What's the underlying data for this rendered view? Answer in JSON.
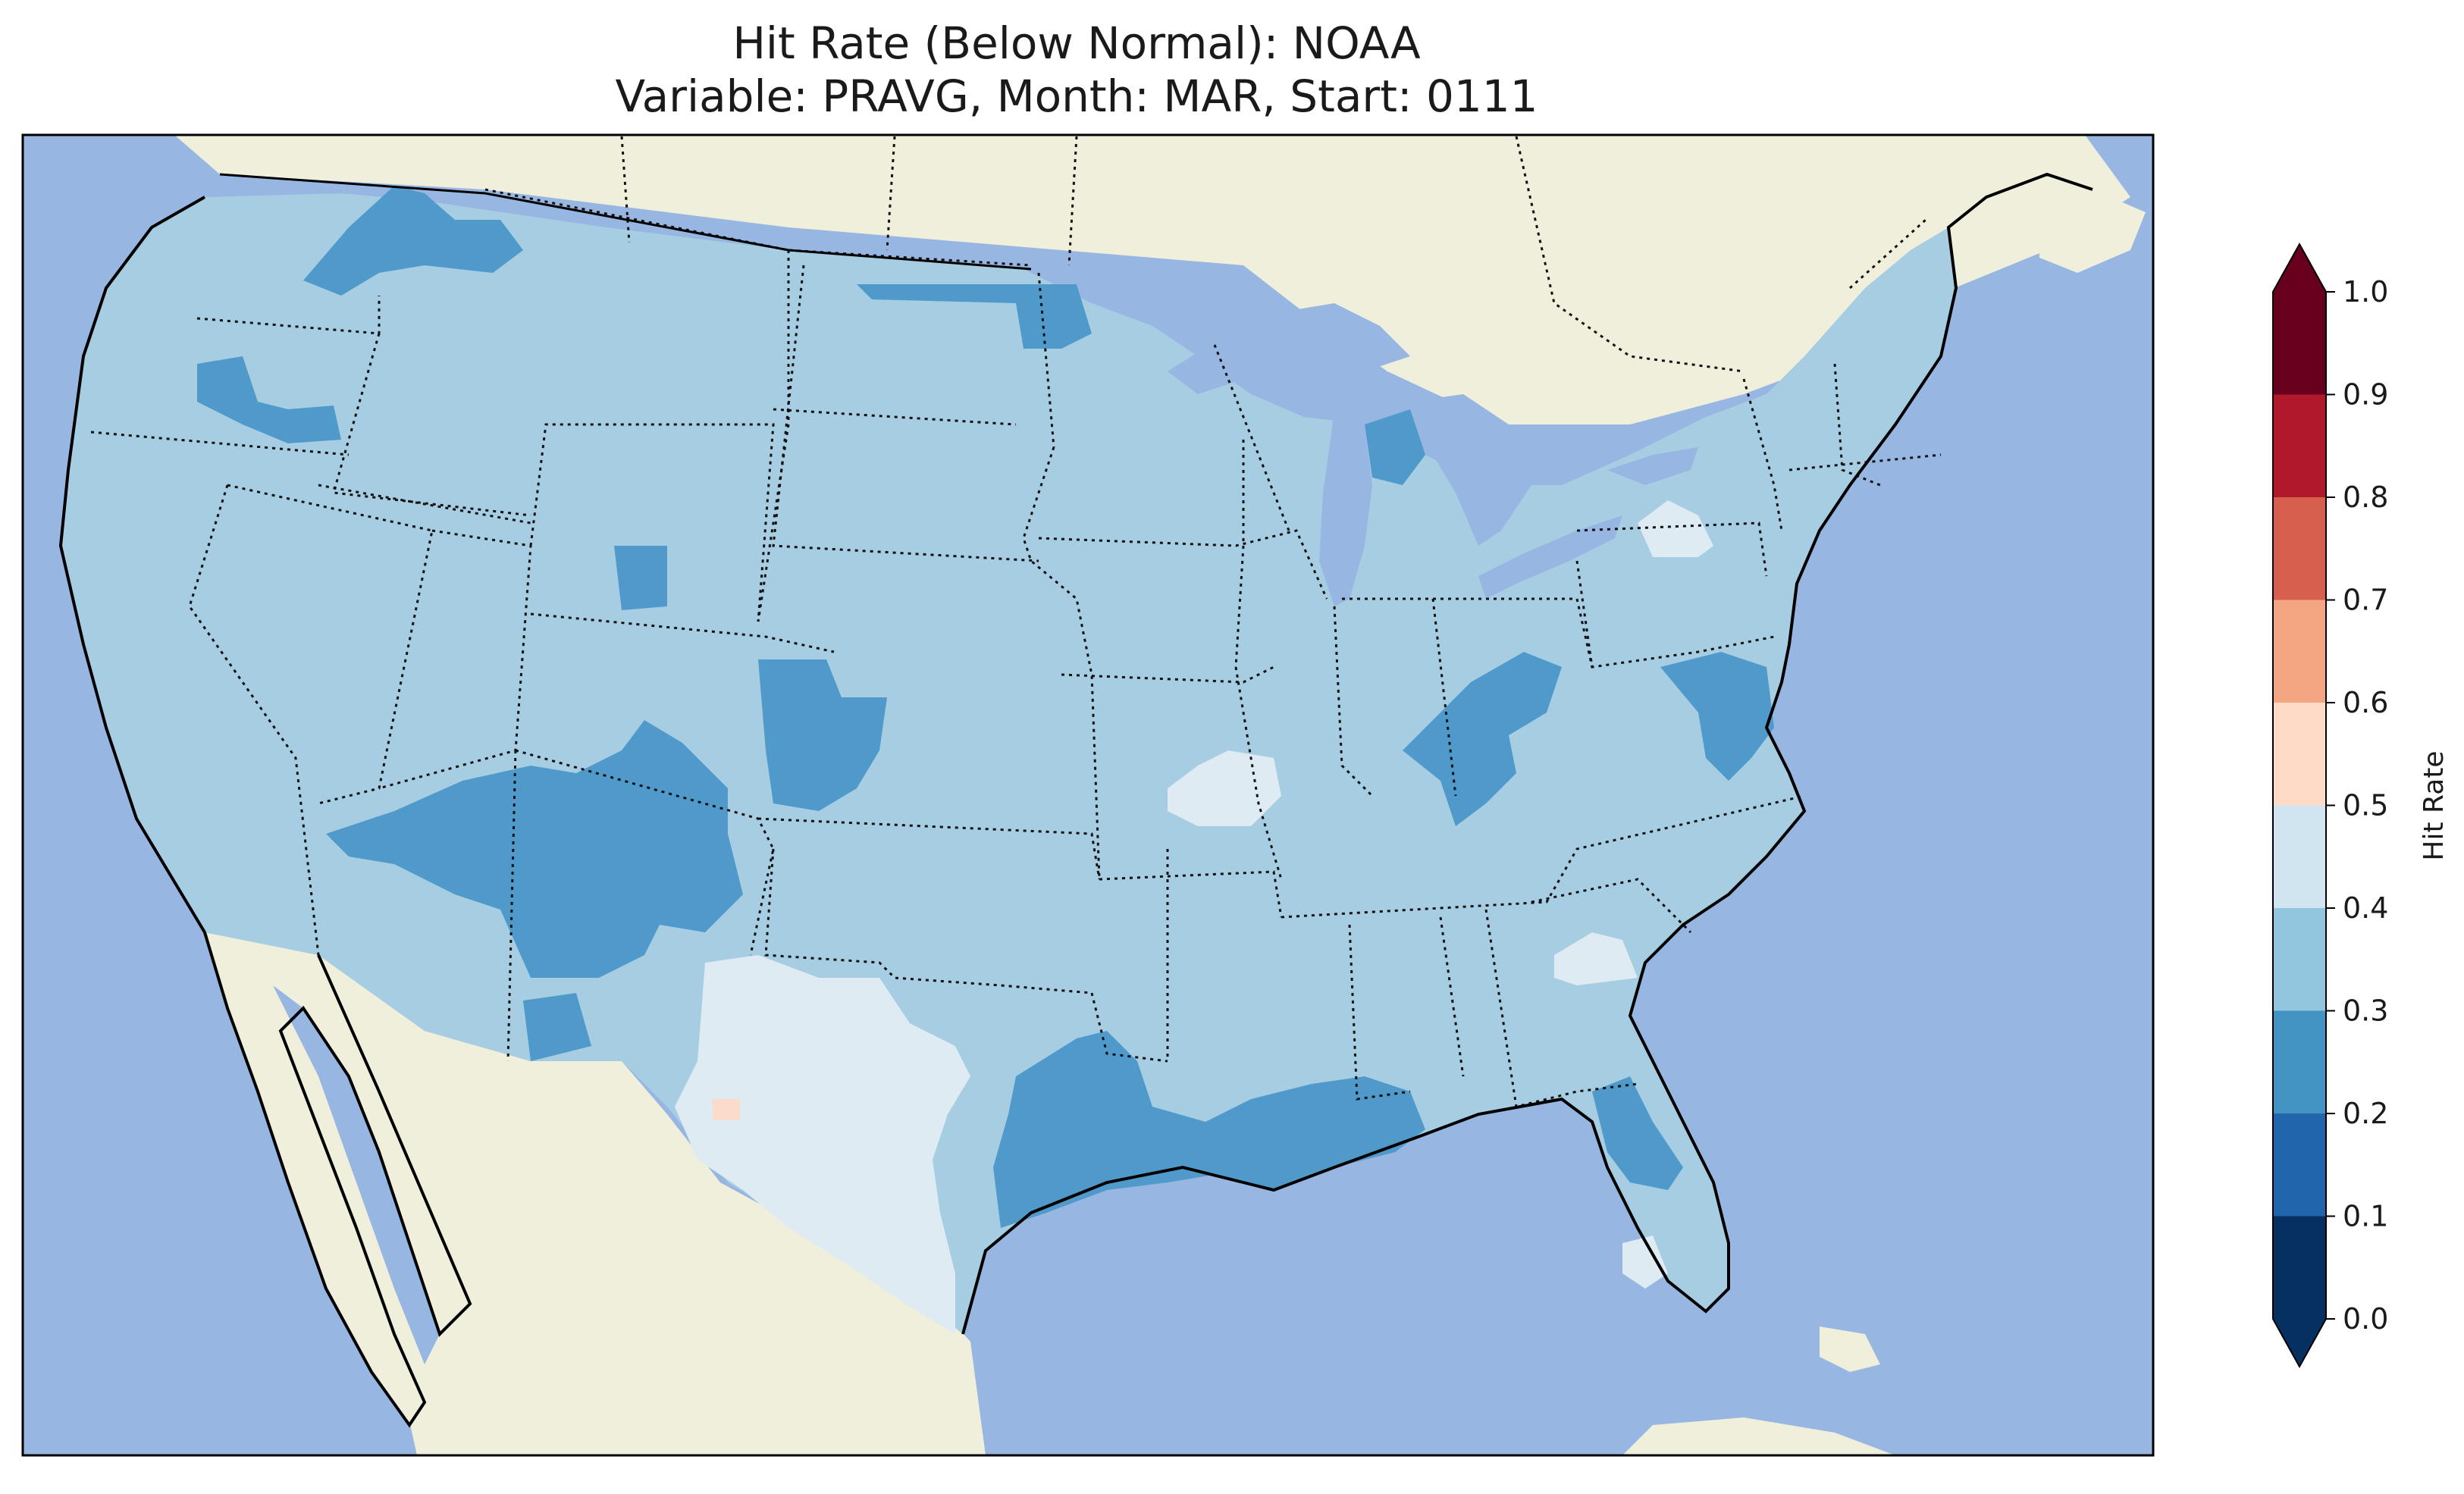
{
  "title_line1": "Hit Rate (Below Normal): NOAA",
  "title_line2": "Variable: PRAVG, Month: MAR, Start: 0111",
  "colors": {
    "ocean": "#97b6e1",
    "land": "#efefdb",
    "lake": "#97b6e1",
    "border": "#000000"
  },
  "colorbar": {
    "label": "Hit Rate",
    "ticks": [
      "0.0",
      "0.1",
      "0.2",
      "0.3",
      "0.4",
      "0.5",
      "0.6",
      "0.7",
      "0.8",
      "0.9",
      "1.0"
    ],
    "bins": [
      {
        "range": [
          0.0,
          0.1
        ],
        "color": "#053061"
      },
      {
        "range": [
          0.1,
          0.2
        ],
        "color": "#2166ac"
      },
      {
        "range": [
          0.2,
          0.3
        ],
        "color": "#4393c3"
      },
      {
        "range": [
          0.3,
          0.4
        ],
        "color": "#92c5de"
      },
      {
        "range": [
          0.4,
          0.5
        ],
        "color": "#d1e5f0"
      },
      {
        "range": [
          0.5,
          0.6
        ],
        "color": "#fddbc7"
      },
      {
        "range": [
          0.6,
          0.7
        ],
        "color": "#f4a582"
      },
      {
        "range": [
          0.7,
          0.8
        ],
        "color": "#d6604d"
      },
      {
        "range": [
          0.8,
          0.9
        ],
        "color": "#b2182b"
      },
      {
        "range": [
          0.9,
          1.0
        ],
        "color": "#67001f"
      }
    ],
    "extend_under_color": "#053061",
    "extend_over_color": "#67001f"
  },
  "field": {
    "base_color": "#a6cde2",
    "regions": [
      {
        "label": "0.2-0.3 Washington/Idaho",
        "color": "#4f9acb"
      },
      {
        "label": "0.2-0.3 Four Corners",
        "color": "#4f9acb"
      },
      {
        "label": "0.2-0.3 Colorado/Kansas",
        "color": "#4f9acb"
      },
      {
        "label": "0.2-0.3 East Texas/Louisiana",
        "color": "#4f9acb"
      },
      {
        "label": "0.2-0.3 Ohio Valley",
        "color": "#4f9acb"
      },
      {
        "label": "0.2-0.3 Florida",
        "color": "#4f9acb"
      },
      {
        "label": "0.4-0.5 West Texas",
        "color": "#deebf3"
      },
      {
        "label": "0.4-0.5 Missouri",
        "color": "#deebf3"
      },
      {
        "label": "0.4-0.5 Carolinas",
        "color": "#deebf3"
      },
      {
        "label": "0.4-0.5 New York",
        "color": "#deebf3"
      },
      {
        "label": "0.5-0.6 Texas spot",
        "color": "#fbdcca"
      }
    ]
  }
}
